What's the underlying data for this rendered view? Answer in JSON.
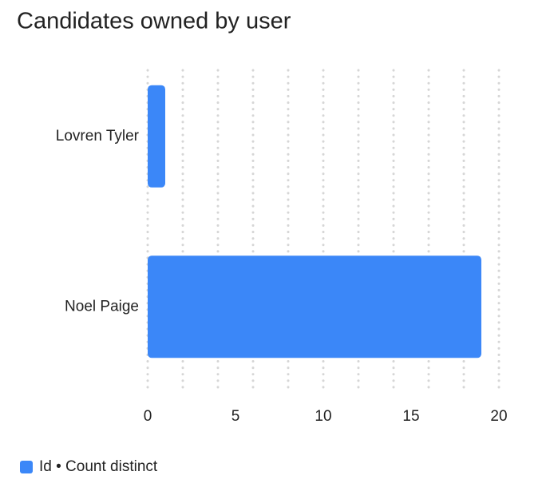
{
  "chart_data": {
    "type": "hbar",
    "title": "Candidates owned by user",
    "categories": [
      "Lovren Tyler",
      "Noel Paige"
    ],
    "series": [
      {
        "name": "Id • Count distinct",
        "color": "#3b87f8",
        "values": [
          1,
          19
        ]
      }
    ],
    "xlim": [
      0,
      20
    ],
    "xticks": [
      0,
      5,
      10,
      15,
      20
    ],
    "xgrid": [
      0,
      2,
      4,
      6,
      8,
      10,
      12,
      14,
      16,
      18,
      20
    ],
    "grid": true,
    "legend": "bottom-left"
  }
}
